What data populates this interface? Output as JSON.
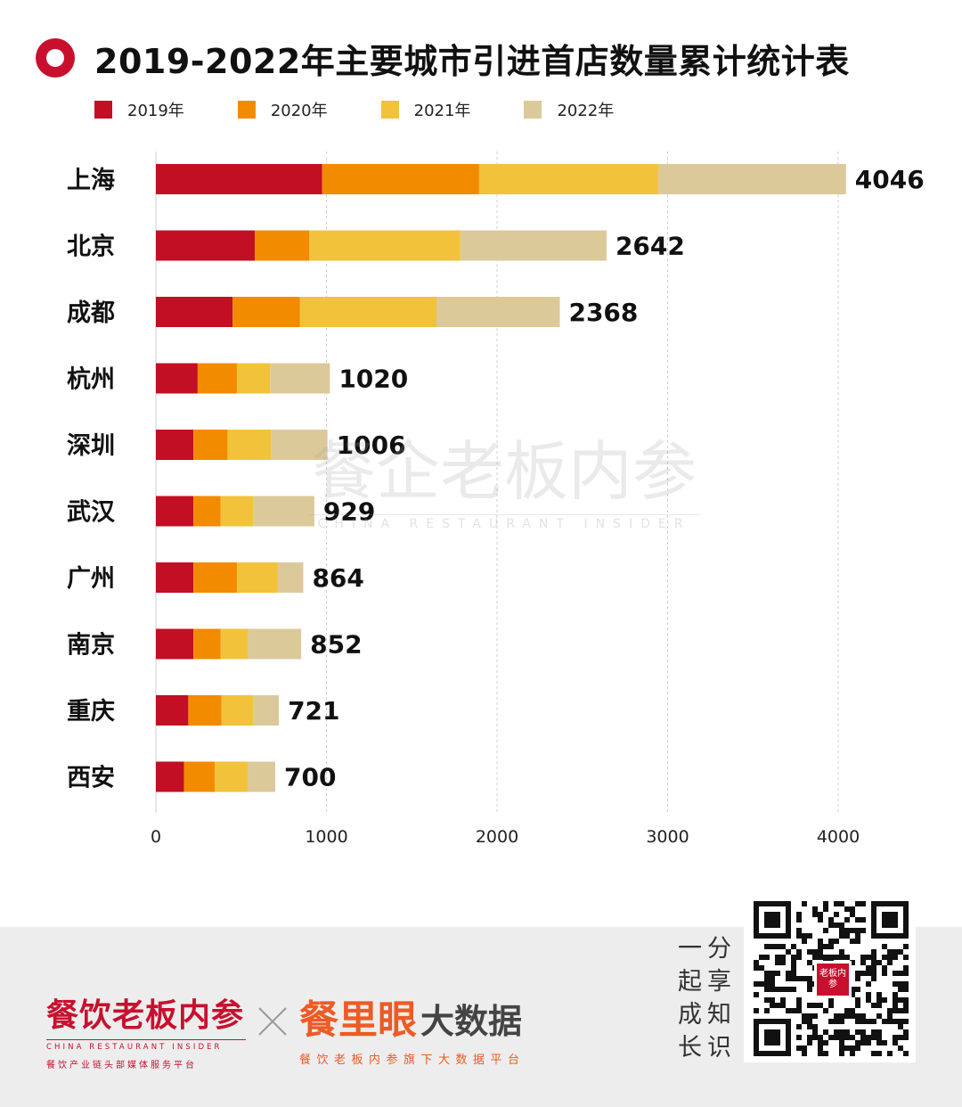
{
  "title": "2019-2022年主要城市引进首店数量累计统计表",
  "colors": {
    "accent": "#c8102e",
    "series": [
      "#c20f23",
      "#f28b00",
      "#f2c23b",
      "#dcc99a"
    ]
  },
  "chart_data": {
    "type": "bar",
    "orientation": "horizontal",
    "stacked": true,
    "title": "2019-2022年主要城市引进首店数量累计统计表",
    "categories": [
      "上海",
      "北京",
      "成都",
      "杭州",
      "深圳",
      "武汉",
      "广州",
      "南京",
      "重庆",
      "西安"
    ],
    "series": [
      {
        "name": "2019年",
        "values": [
          975,
          580,
          450,
          245,
          220,
          220,
          220,
          220,
          190,
          165
        ]
      },
      {
        "name": "2020年",
        "values": [
          920,
          320,
          395,
          230,
          200,
          160,
          255,
          160,
          195,
          180
        ]
      },
      {
        "name": "2021年",
        "values": [
          1050,
          885,
          800,
          195,
          255,
          190,
          240,
          160,
          185,
          195
        ]
      },
      {
        "name": "2022年",
        "values": [
          1101,
          857,
          723,
          350,
          331,
          359,
          149,
          312,
          151,
          160
        ]
      }
    ],
    "totals": [
      4046,
      2642,
      2368,
      1020,
      1006,
      929,
      864,
      852,
      721,
      700
    ],
    "xlim": [
      0,
      4000
    ],
    "xticks": [
      0,
      1000,
      2000,
      3000,
      4000
    ],
    "legend_position": "top-left",
    "grid": "vertical-dashed"
  },
  "watermark": {
    "main": "餐企老板内参",
    "en": "CHINA RESTAURANT INSIDER"
  },
  "footer": {
    "brand1": {
      "main": "餐饮老板内参",
      "en": "CHINA RESTAURANT INSIDER",
      "sub": "餐饮产业链头部媒体服务平台"
    },
    "brand2": {
      "main_a": "餐里眼",
      "main_b": "大数据",
      "sub": "餐饮老板内参旗下大数据平台"
    },
    "share_chars": [
      "一",
      "分",
      "起",
      "享",
      "成",
      "知",
      "长",
      "识"
    ],
    "qr_logo": "老板内参"
  }
}
